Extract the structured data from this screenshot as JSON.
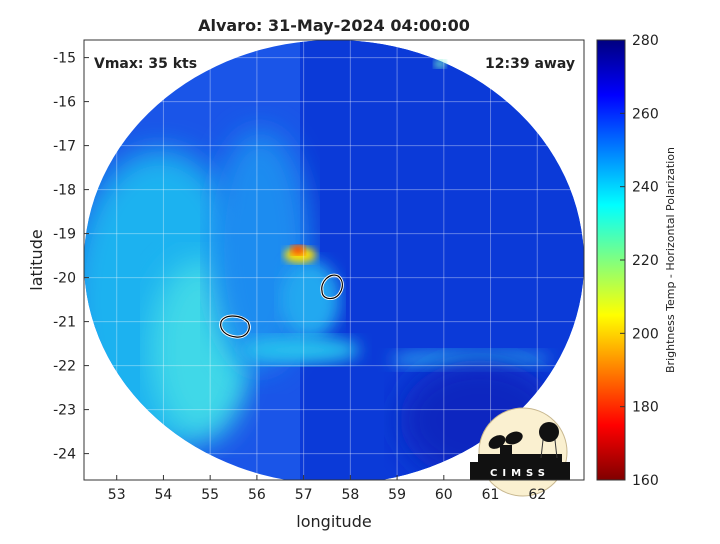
{
  "chart_data": {
    "type": "heatmap",
    "title": "Alvaro: 31-May-2024 04:00:00",
    "xlabel": "longitude",
    "ylabel": "latitude",
    "xlim": [
      52.3,
      63.0
    ],
    "ylim": [
      -24.6,
      -14.6
    ],
    "xticks": [
      "53",
      "54",
      "55",
      "56",
      "57",
      "58",
      "59",
      "60",
      "61",
      "62"
    ],
    "yticks": [
      "-15",
      "-16",
      "-17",
      "-18",
      "-19",
      "-20",
      "-21",
      "-22",
      "-23",
      "-24"
    ],
    "grid": true,
    "annotations": {
      "vmax": "Vmax: 35 kts",
      "distance": "12:39 away"
    },
    "colorbar": {
      "label": "Brightness Temp - Horizontal Polarization",
      "range": [
        160,
        280
      ],
      "ticks": [
        "280",
        "260",
        "240",
        "220",
        "200",
        "180",
        "160"
      ],
      "colormap": "jet"
    },
    "features": [
      {
        "type": "warm-spot",
        "lon": 56.9,
        "lat": -19.5,
        "value": 185
      },
      {
        "type": "contour",
        "lon": 57.6,
        "lat": -20.2
      },
      {
        "type": "contour",
        "lon": 55.5,
        "lat": -21.1
      }
    ],
    "logo": "CIMSS"
  }
}
